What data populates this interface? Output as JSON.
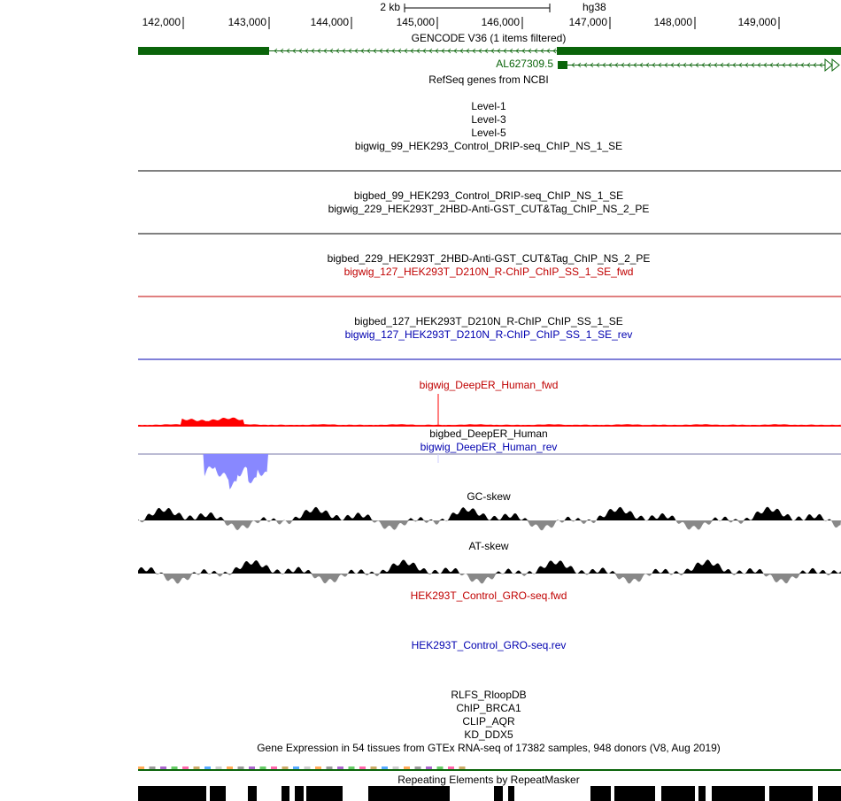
{
  "ruler": {
    "scale": "2 kb",
    "assembly": "hg38",
    "positions": [
      "142,000",
      "143,000",
      "144,000",
      "145,000",
      "146,000",
      "147,000",
      "148,000",
      "149,000"
    ]
  },
  "gene": "AL627309.5",
  "tracks": [
    "GENCODE V36 (1 items filtered)",
    "RefSeq genes from NCBI",
    "Level-1",
    "Level-3",
    "Level-5",
    "bigwig_99_HEK293_Control_DRIP-seq_ChIP_NS_1_SE",
    "bigbed_99_HEK293_Control_DRIP-seq_ChIP_NS_1_SE",
    "bigwig_229_HEK293T_2HBD-Anti-GST_CUT&Tag_ChIP_NS_2_PE",
    "bigbed_229_HEK293T_2HBD-Anti-GST_CUT&Tag_ChIP_NS_2_PE",
    "bigwig_127_HEK293T_D210N_R-ChIP_ChIP_SS_1_SE_fwd",
    "bigbed_127_HEK293T_D210N_R-ChIP_ChIP_SS_1_SE",
    "bigwig_127_HEK293T_D210N_R-ChIP_ChIP_SS_1_SE_rev",
    "bigwig_DeepER_Human_fwd",
    "bigbed_DeepER_Human",
    "bigwig_DeepER_Human_rev",
    "GC-skew",
    "AT-skew",
    "HEK293T_Control_GRO-seq.fwd",
    "HEK293T_Control_GRO-seq.rev",
    "RLFS_RloopDB",
    "ChIP_BRCA1",
    "CLIP_AQR",
    "KD_DDX5",
    "Gene Expression in 54 tissues from GTEx RNA-seq of 17382 samples, 948 donors (V8, Aug 2019)",
    "Repeating Elements by RepeatMasker"
  ]
}
